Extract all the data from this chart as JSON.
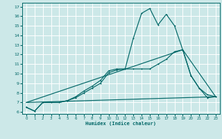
{
  "xlabel": "Humidex (Indice chaleur)",
  "bg_color": "#cce8e8",
  "grid_color": "#ffffff",
  "line_color": "#006666",
  "xlim": [
    -0.5,
    23.5
  ],
  "ylim": [
    5.8,
    17.4
  ],
  "xticks": [
    0,
    1,
    2,
    3,
    4,
    5,
    6,
    7,
    8,
    9,
    10,
    11,
    12,
    13,
    14,
    15,
    16,
    17,
    18,
    19,
    20,
    21,
    22,
    23
  ],
  "yticks": [
    6,
    7,
    8,
    9,
    10,
    11,
    12,
    13,
    14,
    15,
    16,
    17
  ],
  "series1_x": [
    0,
    1,
    2,
    3,
    4,
    5,
    6,
    7,
    8,
    9,
    10,
    11,
    12,
    13,
    14,
    15,
    16,
    17,
    18,
    19,
    20,
    21,
    22,
    23
  ],
  "series1_y": [
    6.5,
    6.1,
    7.0,
    7.0,
    7.0,
    7.2,
    7.6,
    8.2,
    8.7,
    9.3,
    10.3,
    10.5,
    10.5,
    13.7,
    16.3,
    16.8,
    15.1,
    16.2,
    15.0,
    12.5,
    9.8,
    8.5,
    7.8,
    7.6
  ],
  "series2_x": [
    0,
    1,
    2,
    3,
    4,
    5,
    6,
    7,
    8,
    9,
    10,
    11,
    12,
    13,
    14,
    15,
    16,
    17,
    18,
    19,
    20,
    21,
    22,
    23
  ],
  "series2_y": [
    6.5,
    6.1,
    7.0,
    7.0,
    7.0,
    7.2,
    7.5,
    8.0,
    8.5,
    9.0,
    10.1,
    10.4,
    10.5,
    10.5,
    10.5,
    10.5,
    11.0,
    11.5,
    12.3,
    12.5,
    9.8,
    8.5,
    7.5,
    7.6
  ],
  "series3_x": [
    0,
    23
  ],
  "series3_y": [
    7.0,
    7.6
  ],
  "series4_x": [
    0,
    19,
    23
  ],
  "series4_y": [
    7.0,
    12.5,
    7.6
  ]
}
